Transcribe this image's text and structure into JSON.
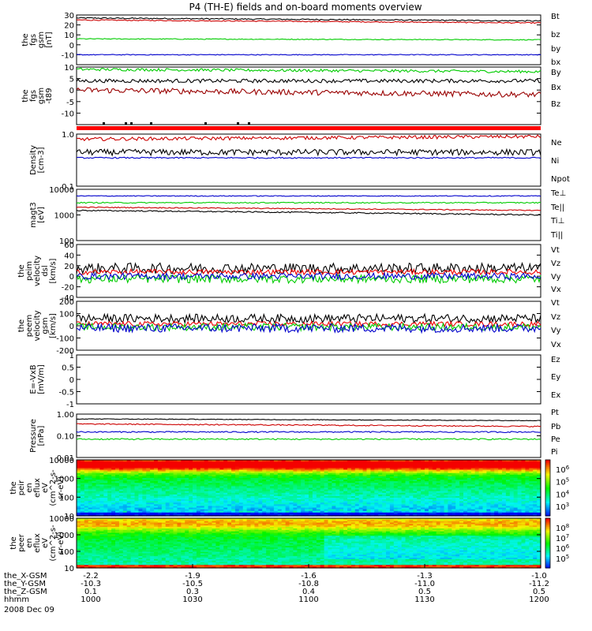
{
  "title": "P4 (TH-E) fields and on-board moments overview",
  "chart_data": [
    {
      "type": "line",
      "id": "p1",
      "ylabel": [
        "the",
        "fgs",
        "gsm",
        "[nT]"
      ],
      "ylim": [
        -20,
        30
      ],
      "ticks": [
        -10,
        0,
        10,
        20,
        30
      ],
      "log": false,
      "series": [
        {
          "name": "Bt",
          "color": "#000000",
          "level": 27,
          "amp": 0.6,
          "trend": -3
        },
        {
          "name": "bz",
          "color": "#cc0000",
          "level": 25,
          "amp": 0.5,
          "trend": -3
        },
        {
          "name": "by",
          "color": "#00cc00",
          "level": 6,
          "amp": 0.4,
          "trend": -1
        },
        {
          "name": "bx",
          "color": "#0000cc",
          "level": -10,
          "amp": 0.4,
          "trend": 0
        }
      ]
    },
    {
      "type": "line",
      "id": "p2",
      "ylabel": [
        "the",
        "fgs",
        "gsm",
        "-t89"
      ],
      "ylim": [
        -15,
        10
      ],
      "ticks": [
        -10,
        -5,
        0,
        5,
        10
      ],
      "log": false,
      "series": [
        {
          "name": "By",
          "color": "#00cc00",
          "level": 9,
          "amp": 0.6,
          "trend": -1
        },
        {
          "name": "Bx",
          "color": "#000000",
          "level": 4,
          "amp": 0.8,
          "trend": 0
        },
        {
          "name": "Bz",
          "color": "#990000",
          "level": 0,
          "amp": 1.2,
          "trend": -2
        }
      ]
    },
    {
      "type": "line",
      "id": "p3",
      "ylabel": [
        "Density",
        "[cm-3]"
      ],
      "ylim": [
        0.1,
        1.0
      ],
      "tick_labels": [
        "0.1",
        "1.0"
      ],
      "log": true,
      "series": [
        {
          "name": "Ne",
          "color": "#cc0000",
          "level": 0.8,
          "amp": 0.06,
          "trend": 0.1
        },
        {
          "name": "Ni",
          "color": "#000000",
          "level": 0.45,
          "amp": 0.06,
          "trend": 0
        },
        {
          "name": "Npot",
          "color": "#0000cc",
          "level": 0.35,
          "amp": 0.01,
          "trend": 0
        }
      ]
    },
    {
      "type": "line",
      "id": "p4",
      "ylabel": [
        "magt3",
        "[eV]"
      ],
      "ylim": [
        100,
        10000
      ],
      "tick_labels": [
        "100",
        "1000",
        "10000"
      ],
      "log": true,
      "series": [
        {
          "name": "Te⊥",
          "color": "#cc0000",
          "level": 2000,
          "amp": 80,
          "trend": -500
        },
        {
          "name": "Te||",
          "color": "#000000",
          "level": 1500,
          "amp": 80,
          "trend": -500
        },
        {
          "name": "Ti⊥",
          "color": "#0000cc",
          "level": 5500,
          "amp": 200,
          "trend": 0
        },
        {
          "name": "Ti||",
          "color": "#00cc00",
          "level": 3000,
          "amp": 150,
          "trend": 0
        }
      ]
    },
    {
      "type": "line",
      "id": "p5",
      "ylabel": [
        "the",
        "peim",
        "velocity",
        "dsl",
        "[km/s]"
      ],
      "ylim": [
        -40,
        60
      ],
      "ticks": [
        -40,
        -20,
        0,
        20,
        40,
        60
      ],
      "log": false,
      "series": [
        {
          "name": "Vt",
          "color": "#000000",
          "level": 15,
          "amp": 10,
          "trend": 0
        },
        {
          "name": "Vz",
          "color": "#ee0000",
          "level": 8,
          "amp": 5,
          "trend": 0
        },
        {
          "name": "Vy",
          "color": "#00cc00",
          "level": -5,
          "amp": 8,
          "trend": 0
        },
        {
          "name": "Vx",
          "color": "#0000cc",
          "level": 0,
          "amp": 6,
          "trend": 0
        }
      ]
    },
    {
      "type": "line",
      "id": "p6",
      "ylabel": [
        "the",
        "peem",
        "velocity",
        "gsm",
        "[km/s]"
      ],
      "ylim": [
        -200,
        200
      ],
      "ticks": [
        -200,
        -100,
        0,
        100,
        200
      ],
      "log": false,
      "series": [
        {
          "name": "Vt",
          "color": "#000000",
          "level": 60,
          "amp": 35,
          "trend": 0
        },
        {
          "name": "Vz",
          "color": "#ee0000",
          "level": 15,
          "amp": 20,
          "trend": 0
        },
        {
          "name": "Vy",
          "color": "#00cc00",
          "level": -10,
          "amp": 30,
          "trend": 0
        },
        {
          "name": "Vx",
          "color": "#0000cc",
          "level": -20,
          "amp": 35,
          "trend": 0
        }
      ]
    },
    {
      "type": "line",
      "id": "p7",
      "ylabel": [
        "E=-VxB",
        "[mV/m]"
      ],
      "ylim": [
        -1.0,
        1.0
      ],
      "ticks": [
        -1.0,
        -0.5,
        0.0,
        0.5,
        1.0
      ],
      "log": false,
      "series": [
        {
          "name": "Ez",
          "color": "#cc0000"
        },
        {
          "name": "Ey",
          "color": "#00cc00"
        },
        {
          "name": "Ex",
          "color": "#0000cc"
        }
      ]
    },
    {
      "type": "line",
      "id": "p8",
      "ylabel": [
        "Pressure",
        "[nPa]"
      ],
      "ylim": [
        0.01,
        1.0
      ],
      "tick_labels": [
        "0.01",
        "0.10",
        "1.00"
      ],
      "log": true,
      "series": [
        {
          "name": "Pt",
          "color": "#000000",
          "level": 0.6,
          "amp": 0.02,
          "trend": -0.1
        },
        {
          "name": "Pb",
          "color": "#cc0000",
          "level": 0.35,
          "amp": 0.02,
          "trend": -0.08
        },
        {
          "name": "Pe",
          "color": "#00cc00",
          "level": 0.07,
          "amp": 0.005,
          "trend": 0
        },
        {
          "name": "Pi",
          "color": "#0000cc",
          "level": 0.15,
          "amp": 0.01,
          "trend": 0
        }
      ]
    },
    {
      "type": "heatmap",
      "id": "p9",
      "ylabel": [
        "the",
        "peir",
        "en",
        "eflux",
        "eV",
        "(cm^2-s-",
        "sr-eV)"
      ],
      "ylim": [
        10,
        10000
      ],
      "tick_labels": [
        "10",
        "100",
        "1000",
        "10000"
      ],
      "log": true,
      "colorbar": {
        "labels": [
          "10^6",
          "10^5",
          "10^4",
          "10^3"
        ]
      }
    },
    {
      "type": "heatmap",
      "id": "p10",
      "ylabel": [
        "the",
        "peer",
        "en",
        "eflux",
        "eV",
        "(cm^2-s-",
        "sr-eV)"
      ],
      "ylim": [
        10,
        10000
      ],
      "tick_labels": [
        "10",
        "100",
        "1000",
        "10000"
      ],
      "log": true,
      "colorbar": {
        "labels": [
          "10^8",
          "10^7",
          "10^6",
          "10^5"
        ]
      }
    }
  ],
  "x_axis": {
    "rows": [
      {
        "label": "the_X-GSM",
        "values": [
          "-2.2",
          "-1.9",
          "-1.6",
          "-1.3",
          "-1.0"
        ]
      },
      {
        "label": "the_Y-GSM",
        "values": [
          "-10.3",
          "-10.5",
          "-10.8",
          "-11.0",
          "-11.2"
        ]
      },
      {
        "label": "the_Z-GSM",
        "values": [
          "0.1",
          "0.3",
          "0.4",
          "0.5",
          "0.5"
        ]
      },
      {
        "label": "hhmm",
        "values": [
          "1000",
          "1030",
          "1100",
          "1130",
          "1200"
        ]
      }
    ],
    "date": "2008 Dec 09"
  }
}
